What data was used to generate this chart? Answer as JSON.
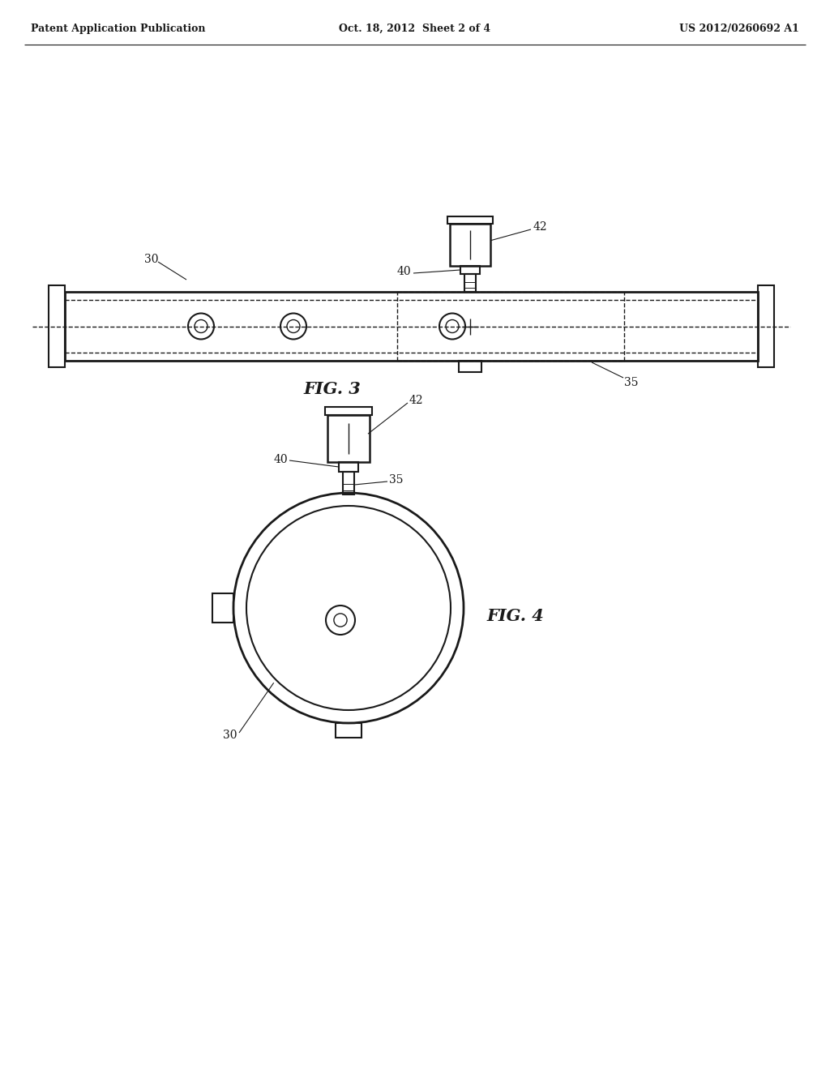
{
  "bg_color": "#ffffff",
  "line_color": "#1a1a1a",
  "header_left": "Patent Application Publication",
  "header_center": "Oct. 18, 2012  Sheet 2 of 4",
  "header_right": "US 2012/0260692 A1",
  "fig3_label": "FIG. 3",
  "fig4_label": "FIG. 4"
}
